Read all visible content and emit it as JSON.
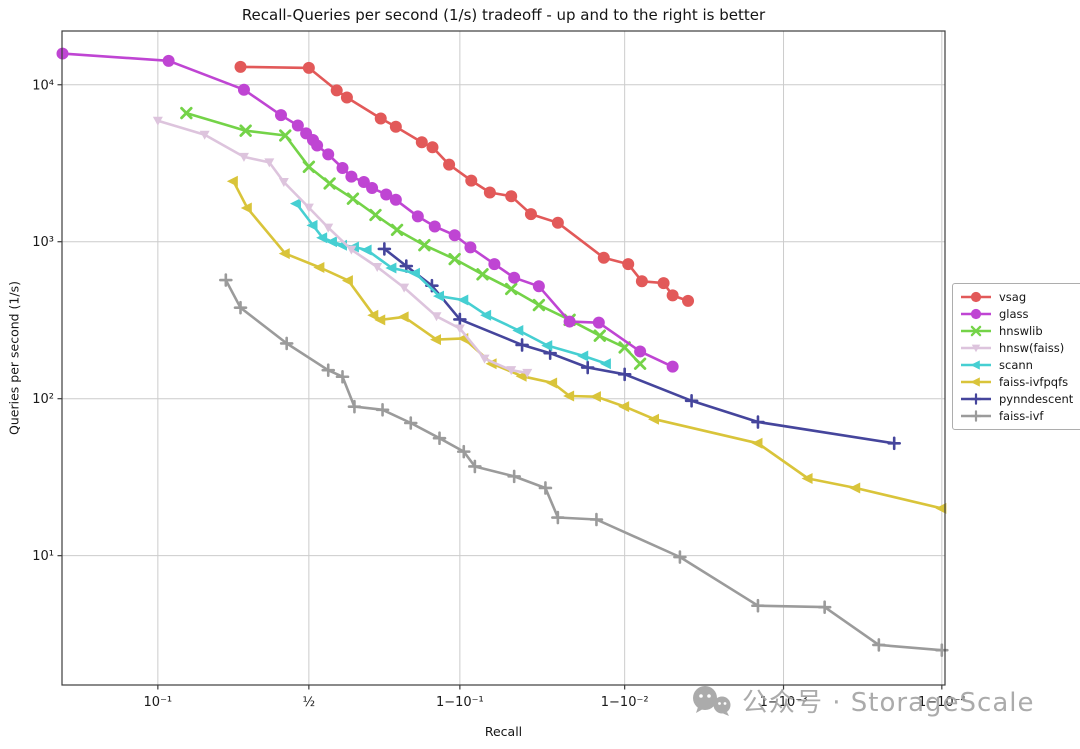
{
  "watermark": {
    "text": "公众号 · StorageScale"
  },
  "chart_data": {
    "type": "line",
    "title": "Recall-Queries per second (1/s) tradeoff - up and to the right is better",
    "xlabel": "Recall",
    "ylabel": "Queries per second (1/s)",
    "xscale": "logit",
    "yscale": "log",
    "xlim_logit": [
      -1.56,
      4.02
    ],
    "ylim": [
      1.5,
      22000
    ],
    "grid": true,
    "legend_position": "right-outside",
    "xticks": [
      {
        "value": 0.1,
        "label": "10⁻¹"
      },
      {
        "value": 0.5,
        "label": "½"
      },
      {
        "value": 0.9,
        "label": "1−10⁻¹"
      },
      {
        "value": 0.99,
        "label": "1−10⁻²"
      },
      {
        "value": 0.999,
        "label": "1−10⁻³"
      },
      {
        "value": 0.9999,
        "label": "1−10⁻⁴"
      }
    ],
    "yticks": [
      {
        "value": 10,
        "label": "10¹"
      },
      {
        "value": 100,
        "label": "10²"
      },
      {
        "value": 1000,
        "label": "10³"
      },
      {
        "value": 10000,
        "label": "10⁴"
      }
    ],
    "series": [
      {
        "name": "vsag",
        "color": "#e25959",
        "marker": "circle",
        "points": [
          [
            0.27,
            13000
          ],
          [
            0.5,
            12800
          ],
          [
            0.6,
            9200
          ],
          [
            0.635,
            8300
          ],
          [
            0.74,
            6100
          ],
          [
            0.78,
            5400
          ],
          [
            0.838,
            4300
          ],
          [
            0.858,
            4000
          ],
          [
            0.885,
            3100
          ],
          [
            0.914,
            2450
          ],
          [
            0.933,
            2060
          ],
          [
            0.95,
            1950
          ],
          [
            0.962,
            1500
          ],
          [
            0.974,
            1320
          ],
          [
            0.9865,
            790
          ],
          [
            0.9905,
            720
          ],
          [
            0.9922,
            560
          ],
          [
            0.9943,
            545
          ],
          [
            0.995,
            455
          ],
          [
            0.996,
            420
          ]
        ]
      },
      {
        "name": "glass",
        "color": "#bf45d3",
        "marker": "circle",
        "points": [
          [
            0.027,
            15800
          ],
          [
            0.115,
            14200
          ],
          [
            0.28,
            9300
          ],
          [
            0.4,
            6400
          ],
          [
            0.46,
            5500
          ],
          [
            0.49,
            4900
          ],
          [
            0.515,
            4450
          ],
          [
            0.53,
            4100
          ],
          [
            0.57,
            3600
          ],
          [
            0.62,
            2950
          ],
          [
            0.65,
            2600
          ],
          [
            0.69,
            2400
          ],
          [
            0.715,
            2200
          ],
          [
            0.755,
            2000
          ],
          [
            0.78,
            1850
          ],
          [
            0.83,
            1450
          ],
          [
            0.862,
            1250
          ],
          [
            0.893,
            1100
          ],
          [
            0.913,
            920
          ],
          [
            0.937,
            720
          ],
          [
            0.952,
            590
          ],
          [
            0.966,
            520
          ],
          [
            0.978,
            310
          ],
          [
            0.9855,
            305
          ],
          [
            0.992,
            200
          ],
          [
            0.995,
            160
          ]
        ]
      },
      {
        "name": "hnswlib",
        "color": "#74d348",
        "marker": "x",
        "points": [
          [
            0.144,
            6600
          ],
          [
            0.285,
            5100
          ],
          [
            0.415,
            4750
          ],
          [
            0.5,
            3000
          ],
          [
            0.575,
            2350
          ],
          [
            0.655,
            1880
          ],
          [
            0.725,
            1480
          ],
          [
            0.783,
            1190
          ],
          [
            0.843,
            950
          ],
          [
            0.893,
            775
          ],
          [
            0.926,
            620
          ],
          [
            0.95,
            500
          ],
          [
            0.966,
            395
          ],
          [
            0.978,
            318
          ],
          [
            0.9857,
            252
          ],
          [
            0.99,
            212
          ],
          [
            0.992,
            167
          ]
        ]
      },
      {
        "name": "hnsw(faiss)",
        "color": "#ddc4dd",
        "marker": "tri-down",
        "points": [
          [
            0.1,
            5900
          ],
          [
            0.18,
            4800
          ],
          [
            0.28,
            3470
          ],
          [
            0.36,
            3200
          ],
          [
            0.41,
            2400
          ],
          [
            0.5,
            1650
          ],
          [
            0.57,
            1230
          ],
          [
            0.65,
            890
          ],
          [
            0.73,
            690
          ],
          [
            0.8,
            510
          ],
          [
            0.865,
            335
          ],
          [
            0.9,
            280
          ],
          [
            0.928,
            180
          ],
          [
            0.95,
            152
          ],
          [
            0.96,
            146
          ]
        ]
      },
      {
        "name": "scann",
        "color": "#46cfd2",
        "marker": "tri-left",
        "points": [
          [
            0.455,
            1750
          ],
          [
            0.515,
            1270
          ],
          [
            0.55,
            1060
          ],
          [
            0.585,
            1000
          ],
          [
            0.62,
            950
          ],
          [
            0.66,
            925
          ],
          [
            0.7,
            885
          ],
          [
            0.77,
            680
          ],
          [
            0.825,
            630
          ],
          [
            0.87,
            450
          ],
          [
            0.905,
            425
          ],
          [
            0.93,
            340
          ],
          [
            0.955,
            272
          ],
          [
            0.97,
            218
          ],
          [
            0.982,
            187
          ],
          [
            0.987,
            167
          ]
        ]
      },
      {
        "name": "faiss-ivfpqfs",
        "color": "#d9c43a",
        "marker": "tri-left",
        "points": [
          [
            0.25,
            2430
          ],
          [
            0.29,
            1640
          ],
          [
            0.415,
            840
          ],
          [
            0.54,
            685
          ],
          [
            0.64,
            565
          ],
          [
            0.72,
            340
          ],
          [
            0.74,
            318
          ],
          [
            0.8,
            332
          ],
          [
            0.865,
            238
          ],
          [
            0.905,
            242
          ],
          [
            0.935,
            167
          ],
          [
            0.957,
            139
          ],
          [
            0.972,
            126
          ],
          [
            0.978,
            104
          ],
          [
            0.985,
            103
          ],
          [
            0.99,
            89
          ],
          [
            0.9935,
            74
          ],
          [
            0.99855,
            52
          ],
          [
            0.9993,
            31
          ],
          [
            0.99965,
            27
          ],
          [
            0.9999,
            20
          ]
        ]
      },
      {
        "name": "pynndescent",
        "color": "#45459c",
        "marker": "plus",
        "points": [
          [
            0.75,
            900
          ],
          [
            0.805,
            700
          ],
          [
            0.857,
            525
          ],
          [
            0.9,
            320
          ],
          [
            0.957,
            220
          ],
          [
            0.971,
            195
          ],
          [
            0.983,
            158
          ],
          [
            0.99,
            143
          ],
          [
            0.9962,
            97
          ],
          [
            0.99855,
            71
          ],
          [
            0.9998,
            52
          ]
        ]
      },
      {
        "name": "faiss-ivf",
        "color": "#9b9b9b",
        "marker": "plus",
        "points": [
          [
            0.23,
            570
          ],
          [
            0.27,
            380
          ],
          [
            0.42,
            225
          ],
          [
            0.57,
            152
          ],
          [
            0.62,
            138
          ],
          [
            0.66,
            89
          ],
          [
            0.745,
            85
          ],
          [
            0.815,
            70
          ],
          [
            0.87,
            56
          ],
          [
            0.905,
            46
          ],
          [
            0.918,
            37
          ],
          [
            0.952,
            32
          ],
          [
            0.969,
            27
          ],
          [
            0.974,
            17.5
          ],
          [
            0.985,
            17
          ],
          [
            0.9955,
            9.8
          ],
          [
            0.99855,
            4.8
          ],
          [
            0.99945,
            4.7
          ],
          [
            0.99975,
            2.7
          ],
          [
            0.9999,
            2.5
          ]
        ]
      }
    ]
  }
}
